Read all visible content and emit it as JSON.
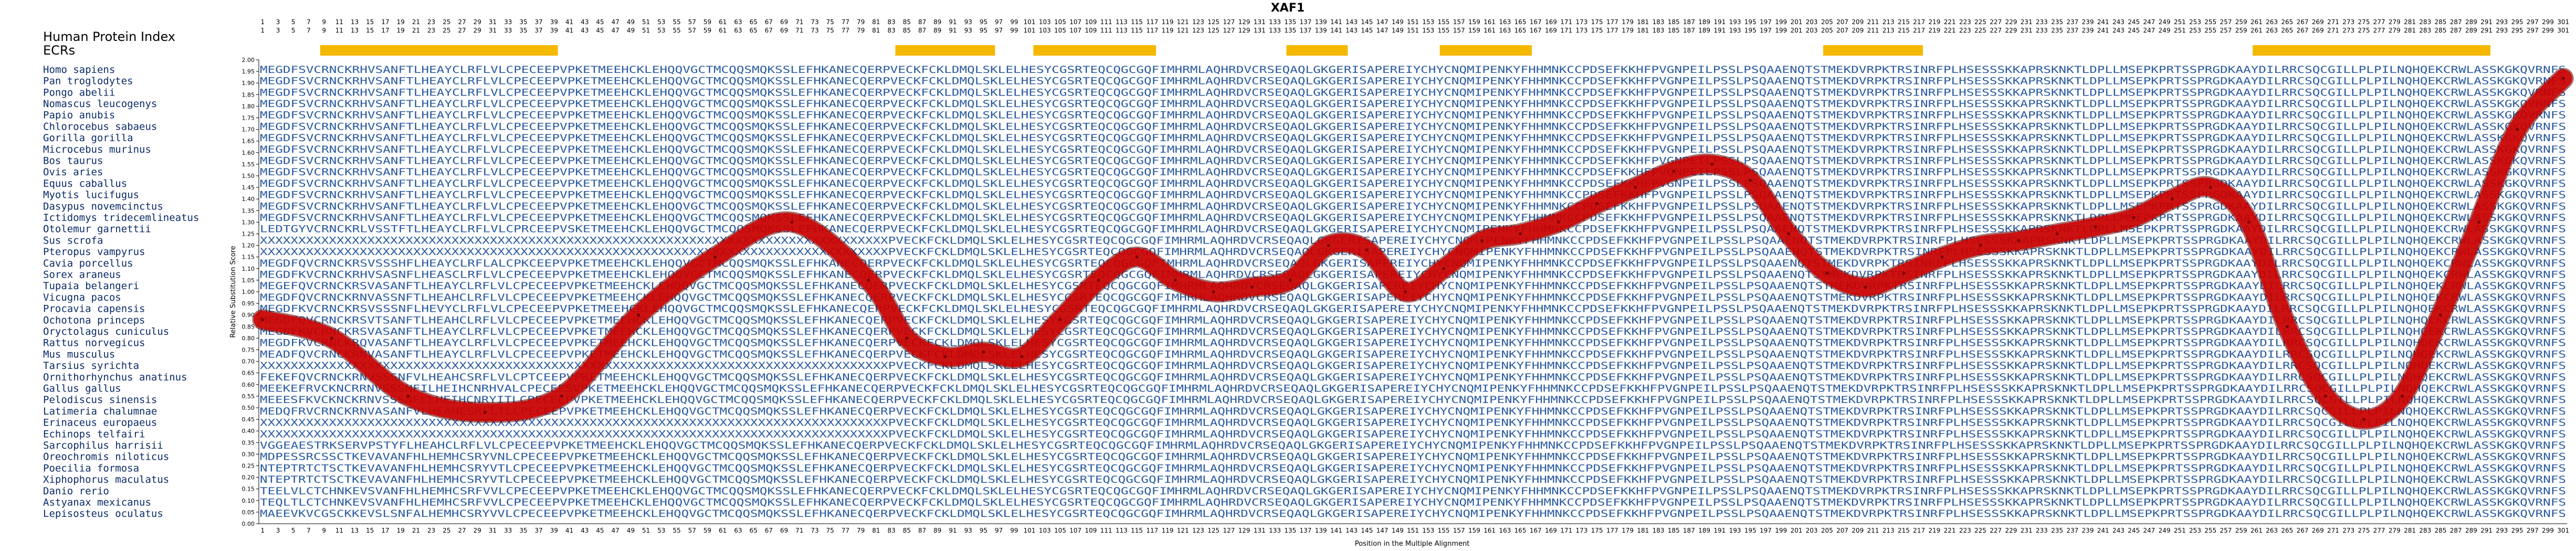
{
  "title": "XAF1",
  "header": {
    "index_label": "Human Protein Index",
    "ecr_label": "ECRs"
  },
  "xlabel": "Position in the Multiple Alignment",
  "ylabel": "Relative Substitution Score",
  "colors": {
    "ecr": "#f5b800",
    "curve": "#d40000",
    "sequence_text": "#2a5aa0",
    "species_text": "#0a2a66"
  },
  "species": [
    "Homo sapiens",
    "Pan troglodytes",
    "Pongo abelii",
    "Nomascus leucogenys",
    "Papio anubis",
    "Chlorocebus sabaeus",
    "Gorilla gorilla",
    "Microcebus murinus",
    "Bos taurus",
    "Ovis aries",
    "Equus caballus",
    "Myotis lucifugus",
    "Dasypus novemcinctus",
    "Ictidomys tridecemlineatus",
    "Otolemur garnettii",
    "Sus scrofa",
    "Pteropus vampyrus",
    "Cavia porcellus",
    "Sorex araneus",
    "Tupaia belangeri",
    "Vicugna pacos",
    "Procavia capensis",
    "Ochotona princeps",
    "Oryctolagus cuniculus",
    "Rattus norvegicus",
    "Mus musculus",
    "Tarsius syrichta",
    "Ornithorhynchus anatinus",
    "Gallus gallus",
    "Pelodiscus sinensis",
    "Latimeria chalumnae",
    "Erinaceus europaeus",
    "Echinops telfairi",
    "Sarcophilus harrisii",
    "Oreochromis niloticus",
    "Poecilia formosa",
    "Xiphophorus maculatus",
    "Danio rerio",
    "Astyanax mexicanus",
    "Lepisosteus oculatus"
  ],
  "sequences": [
    "MEGDFSVCRNCKRHVSANFTLHEAYCLRFLVLCPECEEPVPKETMEEHCKLEHQQVGCTMCQQSMQKSSLEFHKANECQERPVECKFCKLDMQLSKLELHESYCGSRTEQCQGCGQFIMHRMLAQHRDVCRSEQAQLGKGERISAPEREIYCHYCNQMIPENKYFHHMNKCCPDSEFKKHFPVGNPEILPSSLPSQAAENQTSTMEKDVRPKTRSINRFPLHSESSSKKAPRSKNKTLDPLLMSEPKPRTSSPRGDKAAYDILRRCSQCGILLPLPILNQHQEKCRWLASSKGKQVRNFS",
    "MEGDFSVCRNCKRHVSANFTLHEAYCLRFLVLCPECEEPVPKETMEEHCKLEHQQVGCTMCQQSMQKSSLEFHKANECQERPVECKFCKLDMQLSKLELHESYCGSRTEQCQGCGQFIMHRMLAQHRDVCRSEQAQLGKGERISAPEREIYCHYCNQMIPENKYFHHMNKCCPDSEFKKHFPVGNPEILPSSLPSQAAENQTSTMEKDVRPKTRSINRFPLHSESSSKKAPRSKNKTLDPLLMSEPKPRTSSPRGDKAAYDILRRCSQCGILLPLPILNQHQEKCRWLASSKGKQVRNFS",
    "MEGDFSVCRNCKRHVSANFTLHEAYCLRFLVLCPECEEPVPKETMEEHCKLEHQQVGCTMCQQSMQKSSLEFHKANECQERPVECKFCKLDMQLSKLELHESYCGSRTEQCQGCGQFIMHRMLAQHRDVCRSEQAQLGKGERISAPEREIYCHYCNQMIPENKYFHHMNKCCPDSEFKKHFPVGNPEILPSSLPSQAAENQTSTMEKDVRPKTRSINRFPLHSESSSKKAPRSKNKTLDPLLMSEPKPRTSSPRGDKAAYDILRRCSQCGILLPLPILNQHQEKCRWLASSKGKQVRNFS",
    "MEGDFSVCRNCKRHVSANFTLHEAYCLRFLVLCPECEEPVPKETMEEHCKLEHQQVGCTMCQQSMQKSSLEFHKANECQERPVECKFCKLDMQLSKLELHESYCGSRTEQCQGCGQFIMHRMLAQHRDVCRSEQAQLGKGERISAPEREIYCHYCNQMIPENKYFHHMNKCCPDSEFKKHFPVGNPEILPSSLPSQAAENQTSTMEKDVRPKTRSINRFPLHSESSSKKAPRSKNKTLDPLLMSEPKPRTSSPRGDKAAYDILRRCSQCGILLPLPILNQHQEKCRWLASSKGKQVRNFS",
    "MEGDFSVCRNCKRHVSANFTLHEAYCLRFLVLCPECEEPVPKETMEEHCKLEHQQVGCTMCQQSMQKSSLEFHKANECQERPVECKFCKLDMQLSKLELHESYCGSRTEQCQGCGQFIMHRMLAQHRDVCRSEQAQLGKGERISAPEREIYCHYCNQMIPENKYFHHMNKCCPDSEFKKHFPVGNPEILPSSLPSQAAENQTSTMEKDVRPKTRSINRFPLHSESSSKKAPRSKNKTLDPLLMSEPKPRTSSPRGDKAAYDILRRCSQCGILLPLPILNQHQEKCRWLASSKGKQVRNFS",
    "MEGDFSVCRNCKRHVSANFTLHEAYCLRFLVLCPECEEPVPKETMEEHCKLEHQQVGCTMCQQSMQKSSLEFHKANECQERPVECKFCKLDMQLSKLELHESYCGSRTEQCQGCGQFIMHRMLAQHRDVCRSEQAQLGKGERISAPEREIYCHYCNQMIPENKYFHHMNKCCPDSEFKKHFPVGNPEILPSSLPSQAAENQTSTMEKDVRPKTRSINRFPLHSESSSKKAPRSKNKTLDPLLMSEPKPRTSSPRGDKAAYDILRRCSQCGILLPLPILNQHQEKCRWLASSKGKQVRNFS",
    "MEGDFSVCRNCKRHVSANFTLHEAYCLRFLVLCPECEEPVPKETMEEHCKLEHQQVGCTMCQQSMQKSSLEFHKANECQERPVECKFCKLDMQLSKLELHESYCGSRTEQCQGCGQFIMHRMLAQHRDVCRSEQAQLGKGERISAPEREIYCHYCNQMIPENKYFHHMNKCCPDSEFKKHFPVGNPEILPSSLPSQAAENQTSTMEKDVRPKTRSINRFPLHSESSSKKAPRSKNKTLDPLLMSEPKPRTSSPRGDKAAYDILRRCSQCGILLPLPILNQHQEKCRWLASSKGKQVRNFS",
    "MEGDFSVCRNCKRHVSANFTLHEAYCLRFLVLCPECEEPVPKETMEEHCKLEHQQVGCTMCQQSMQKSSLEFHKANECQERPVECKFCKLDMQLSKLELHESYCGSRTEQCQGCGQFIMHRMLAQHRDVCRSEQAQLGKGERISAPEREIYCHYCNQMIPENKYFHHMNKCCPDSEFKKHFPVGNPEILPSSLPSQAAENQTSTMEKDVRPKTRSINRFPLHSESSSKKAPRSKNKTLDPLLMSEPKPRTSSPRGDKAAYDILRRCSQCGILLPLPILNQHQEKCRWLASSKGKQVRNFS",
    "MEGDFSVCRNCKRHVSANFTLHEAYCLRFLVLCPECEEPVPKETMEEHCKLEHQQVGCTMCQQSMQKSSLEFHKANECQERPVECKFCKLDMQLSKLELHESYCGSRTEQCQGCGQFIMHRMLAQHRDVCRSEQAQLGKGERISAPEREIYCHYCNQMIPENKYFHHMNKCCPDSEFKKHFPVGNPEILPSSLPSQAAENQTSTMEKDVRPKTRSINRFPLHSESSSKKAPRSKNKTLDPLLMSEPKPRTSSPRGDKAAYDILRRCSQCGILLPLPILNQHQEKCRWLASSKGKQVRNFS",
    "MEGDFSVCRNCKRHVSANFTLHEAYCLRFLVLCPECEEPVPKETMEEHCKLEHQQVGCTMCQQSMQKSSLEFHKANECQERPVECKFCKLDMQLSKLELHESYCGSRTEQCQGCGQFIMHRMLAQHRDVCRSEQAQLGKGERISAPEREIYCHYCNQMIPENKYFHHMNKCCPDSEFKKHFPVGNPEILPSSLPSQAAENQTSTMEKDVRPKTRSINRFPLHSESSSKKAPRSKNKTLDPLLMSEPKPRTSSPRGDKAAYDILRRCSQCGILLPLPILNQHQEKCRWLASSKGKQVRNFS",
    "MEGDFSVCRNCKRHVSANFTLHEAYCLRFLVLCPECEEPVPKETMEEHCKLEHQQVGCTMCQQSMQKSSLEFHKANECQERPVECKFCKLDMQLSKLELHESYCGSRTEQCQGCGQFIMHRMLAQHRDVCRSEQAQLGKGERISAPEREIYCHYCNQMIPENKYFHHMNKCCPDSEFKKHFPVGNPEILPSSLPSQAAENQTSTMEKDVRPKTRSINRFPLHSESSSKKAPRSKNKTLDPLLMSEPKPRTSSPRGDKAAYDILRRCSQCGILLPLPILNQHQEKCRWLASSKGKQVRNFS",
    "MEGDFSVCRNCKRHVSANFTLHEAYCLRFLVLCPECEEPVPKETMEEHCKLEHQQVGCTMCQQSMQKSSLEFHKANECQERPVECKFCKLDMQLSKLELHESYCGSRTEQCQGCGQFIMHRMLAQHRDVCRSEQAQLGKGERISAPEREIYCHYCNQMIPENKYFHHMNKCCPDSEFKKHFPVGNPEILPSSLPSQAAENQTSTMEKDVRPKTRSINRFPLHSESSSKKAPRSKNKTLDPLLMSEPKPRTSSPRGDKAAYDILRRCSQCGILLPLPILNQHQEKCRWLASSKGKQVRNFS",
    "MEGDFSVCRNCKRHVSANFTLHEAYCLRFLVLCPECEEPVPKETMEEHCKLEHQQVGCTMCQQSMQKSSLEFHKANECQERPVECKFCKLDMQLSKLELHESYCGSRTEQCQGCGQFIMHRMLAQHRDVCRSEQAQLGKGERISAPEREIYCHYCNQMIPENKYFHHMNKCCPDSEFKKHFPVGNPEILPSSLPSQAAENQTSTMEKDVRPKTRSINRFPLHSESSSKKAPRSKNKTLDPLLMSEPKPRTSSPRGDKAAYDILRRCSQCGILLPLPILNQHQEKCRWLASSKGKQVRNFS",
    "MEGDFSVCRNCKRHVSANFTLHEAYCLRFLVLCPECEEPVPKETMEEHCKLEHQQVGCTMCQQSMQKSSLEFHKANECQERPVECKFCKLDMQLSKLELHESYCGSRTEQCQGCGQFIMHRMLAQHRDVCRSEQAQLGKGERISAPEREIYCHYCNQMIPENKYFHHMNKCCPDSEFKKHFPVGNPEILPSSLPSQAAENQTSTMEKDVRPKTRSINRFPLHSESSSKKAPRSKNKTLDPLLMSEPKPRTSSPRGDKAAYDILRRCSQCGILLPLPILNQHQEKCRWLASSKGKQVRNFS",
    "LEDTGYVCRNCKRLVSSTFTLHEAYCLRFLVLCPRCEEPVSKETMEEHCKLEHQQVGCTMCQQSMQKSSLEFHKANECQERPVECKFCKLDMQLSKLELHESYCGSRTEQCQGCGQFIMHRMLAQHRDVCRSEQAQLGKGERISAPEREIYCHYCNQMIPENKYFHHMNKCCPDSEFKKHFPVGNPEILPSSLPSQAAENQTSTMEKDVRPKTRSINRFPLHSESSSKKAPRSKNKTLDPLLMSEPKPRTSSPRGDKAAYDILRRCSQCGILLPLPILNQHQEKCRWLASSKGKQVRNFS",
    "XXXXXXXXXXXXXXXXXXXXXXXXXXXXXXXXXXXXXXXXXXXXXXXXXXXXXXXXXXXXXXXXXXXXXXXXXXXXXXXXXXPVECKFCKLDMQLSKLELHESYCGSRTEQCQGCGQFIMHRMLAQHRDVCRSEQAQLGKGERISAPEREIYCHYCNQMIPENKYFHHMNKCCPDSEFKKHFPVGNPEILPSSLPSQAAENQTSTMEKDVRPKTRSINRFPLHSESSSKKAPRSKNKTLDPLLMSEPKPRTSSPRGDKAAYDILRRCSQCGILLPLPILNQHQEKCRWLASSKGKQVRNFS",
    "XXXXXXXXXXXXXXXXXXXXXXXXXXXXXXXXXXXXXXXXXXXXXXXXXXXXXXXXXXXXXXXXXXXXXXXXXXXXXXXXXXPVECKFCKLDMQLSKLELHESYCGSRTEQCQGCGQFIMHRMLAQHRDVCRSEQAQLGKGERISAPEREIYCHYCNQMIPENKYFHHMNKCCPDSEFKKHFPVGNPEILPSSLPSQAAENQTSTMEKDVRPKTRSINRFPLHSESSSKKAPRSKNKTLDPLLMSEPKPRTSSPRGDKAAYDILRRCSQCGILLPLPILNQHQEKCRWLASSKGKQVRNFS",
    "MEGDFQVCRNCKRSVSSSHFLHEAYCLRFLALCPKCEEPVPKETMEEHCKLEHQQVGCTMCQQSMQKSSLEFHKANECQERPVECKFCKLDMQLSKLELHESYCGSRTEQCQGCGQFIMHRMLAQHRDVCRSEQAQLGKGERISAPEREIYCHYCNQMIPENKYFHHMNKCCPDSEFKKHFPVGNPEILPSSLPSQAAENQTSTMEKDVRPKTRSINRFPLHSESSSKKAPRSKNKTLDPLLMSEPKPRTSSPRGDKAAYDILRRCSQCGILLPLPILNQHQEKCRWLASSKGKQVRNFS",
    "MEGDFKVCRNCKRHVSASNFLHEASCLRFLVLCPECEEPVPKETMEEHCKLEHQQVGCTMCQQSMQKSSLEFHKANECQERPVECKFCKLDMQLSKLELHESYCGSRTEQCQGCGQFIMHRMLAQHRDVCRSEQAQLGKGERISAPEREIYCHYCNQMIPENKYFHHMNKCCPDSEFKKHFPVGNPEILPSSLPSQAAENQTSTMEKDVRPKTRSINRFPLHSESSSKKAPRSKNKTLDPLLMSEPKPRTSSPRGDKAAYDILRRCSQCGILLPLPILNQHQEKCRWLASSKGKQVRNFS",
    "MEGEFQVCRNCKRSVASANFTLHEAYCLRFLVLCPECEEPVPKETMEEHCKLEHQQVGCTMCQQSMQKSSLEFHKANECQERPVECKFCKLDMQLSKLELHESYCGSRTEQCQGCGQFIMHRMLAQHRDVCRSEQAQLGKGERISAPEREIYCHYCNQMIPENKYFHHMNKCCPDSEFKKHFPVGNPEILPSSLPSQAAENQTSTMEKDVRPKTRSINRFPLHSESSSKKAPRSKNKTLDPLLMSEPKPRTSSPRGDKAAYDILRRCSQCGILLPLPILNQHQEKCRWLASSKGKQVRNFS",
    "MEGDFQVCRNCKRNVASSNFTLHEAHCLRFLVLCPECEEPVPKETMEEHCKLEHQQVGCTMCQQSMQKSSLEFHKANECQERPVECKFCKLDMQLSKLELHESYCGSRTEQCQGCGQFIMHRMLAQHRDVCRSEQAQLGKGERISAPEREIYCHYCNQMIPENKYFHHMNKCCPDSEFKKHFPVGNPEILPSSLPSQAAENQTSTMEKDVRPKTRSINRFPLHSESSSKKAPRSKNKTLDPLLMSEPKPRTSSPRGDKAAYDILRRCSQCGILLPLPILNQHQEKCRWLASSKGKQVRNFS",
    "MEGDFKVCRNCKRSVSSSNFLHEVYCLRFLVLCPECEEPVPKETMEEHCKLEHQQVGCTMCQQSMQKSSLEFHKANECQERPVECKFCKLDMQLSKLELHESYCGSRTEQCQGCGQFIMHRMLAQHRDVCRSEQAQLGKGERISAPEREIYCHYCNQMIPENKYFHHMNKCCPDSEFKKHFPVGNPEILPSSLPSQAAENQTSTMEKDVRPKTRSINRFPLHSESSSKKAPRSKNKTLDPLLMSEPKPRTSSPRGDKAAYDILRRCSQCGILLPLPILNQHQEKCRWLASSKGKQVRNFS",
    "MEGDFQVCRNCKRSVTSANFTLHEAHCLRFLVLCPECEEPVPKETMEEHCKLEHQQVGCTMCQQSMQKSSLEFHKANECQERPVECKFCKLDMQLSKLELHESYCGSRTEQCQGCGQFIMHRMLAQHRDVCRSEQAQLGKGERISAPEREIYCHYCNQMIPENKYFHHMNKCCPDSEFKKHFPVGNPEILPSSLPSQAAENQTSTMEKDVRPKTRSINRFPLHSESSSKKAPRSKNKTLDPLLMSEPKPRTSSPRGDKAAYDILRRCSQCGILLPLPILNQHQEKCRWLASSKGKQVRNFS",
    "MEGDFKVCRNCKRSVASANFTLHEAYCLRFLVLCPECEEPVPKETMEEHCKLEHQQVGCTMCQQSMQKSSLEFHKANECQERPVECKFCKLDMQLSKLELHESYCGSRTEQCQGCGQFIMHRMLAQHRDVCRSEQAQLGKGERISAPEREIYCHYCNQMIPENKYFHHMNKCCPDSEFKKHFPVGNPEILPSSLPSQAAENQTSTMEKDVRPKTRSINRFPLHSESSSKKAPRSKNKTLDPLLMSEPKPRTSSPRGDKAAYDILRRCSQCGILLPLPILNQHQEKCRWLASSKGKQVRNFS",
    "MEGDFKVCRNCKRQVASANFTLHEAYCLRFLVLCPECEEPVPKETMEEHCKLEHQQVGCTMCQQSMQKSSLEFHKANECQERPVECKFCKLDMQLSKLELHESYCGSRTEQCQGCGQFIMHRMLAQHRDVCRSEQAQLGKGERISAPEREIYCHYCNQMIPENKYFHHMNKCCPDSEFKKHFPVGNPEILPSSLPSQAAENQTSTMEKDVRPKTRSINRFPLHSESSSKKAPRSKNKTLDPLLMSEPKPRTSSPRGDKAAYDILRRCSQCGILLPLPILNQHQEKCRWLASSKGKQVRNFS",
    "MEADFQVCRNCKRNVASANFTLHEAYCLRFLVLCPECEEPVPKETMEEHCKLEHQQVGCTMCQQSMQKSSLEFHKANECQERPVECKFCKLDMQLSKLELHESYCGSRTEQCQGCGQFIMHRMLAQHRDVCRSEQAQLGKGERISAPEREIYCHYCNQMIPENKYFHHMNKCCPDSEFKKHFPVGNPEILPSSLPSQAAENQTSTMEKDVRPKTRSINRFPLHSESSSKKAPRSKNKTLDPLLMSEPKPRTSSPRGDKAAYDILRRCSQCGILLPLPILNQHQEKCRWLASSKGKQVRNFS",
    "XXXXXXXXXXXXXXXXXXXXXXXXXXXXXXXXXXXXXXXXXXXXXXXXXXXXXXXXXXXXXXXXXXXXXXXXXXXXXXXXXXPVECKFCKLDMQLSKLELHESYCGSRTEQCQGCGQFIMHRMLAQHRDVCRSEQAQLGKGERISAPEREIYCHYCNQMIPENKYFHHMNKCCPDSEFKKHFPVGNPEILPSSLPSQAAENQTSTMEKDVRPKTRSINRFPLHSESSSKKAPRSKNKTLDPLLMSEPKPRTSSPRGDKAAYDILRRCSQCGILLPLPILNQHQEKCRWLASSKGKQVRNFS",
    "FEKEFQVCRNCKRNVSSSNFVLHEAHCSRFLVLCPTCEEPVPKETMEEHCKLEHQQVGCTMCQQSMQKSSLEFHKANECQERPVECKFCKLDMQLSKLELHESYCGSRTEQCQGCGQFIMHRMLAQHRDVCRSEQAQLGKGERISAPEREIYCHYCNQMIPENKYFHHMNKCCPDSEFKKHFPVGNPEILPSSLPSQAAENQTSTMEKDVRPKTRSINRFPLHSESSSKKAPRSKNKTLDPLLMSEPKPRTSSPRGDKAAYDILRRCSQCGILLPLPILNQHQEKCRWLASSKGKQVRNFS",
    "MEEKEFRVCKNCRRNVSSSNFILHEIHCNRHVALCPECEESVPKETMEEHCKLEHQQVGCTMCQQSMQKSSLEFHKANECQERPVECKFCKLDMQLSKLELHESYCGSRTEQCQGCGQFIMHRMLAQHRDVCRSEQAQLGKGERISAPEREIYCHYCNQMIPENKYFHHMNKCCPDSEFKKHFPVGNPEILPSSLPSQAAENQTSTMEKDVRPKTRSINRFPLHSESSSKKAPRSKNKTLDPLLMSEPKPRTSSPRGDKAAYDILRRCSQCGILLPLPILNQHQEKCRWLASSKGKQVRNFS",
    "MEEESFKVCKNCKRNVSSSNFLLHEIHCNRYITLCPECEEPVPKETMEEHCKLEHQQVGCTMCQQSMQKSSLEFHKANECQERPVECKFCKLDMQLSKLELHESYCGSRTEQCQGCGQFIMHRMLAQHRDVCRSEQAQLGKGERISAPEREIYCHYCNQMIPENKYFHHMNKCCPDSEFKKHFPVGNPEILPSSLPSQAAENQTSTMEKDVRPKTRSINRFPLHSESSSKKAPRSKNKTLDPLLMSEPKPRTSSPRGDKAAYDILRRCSQCGILLPLPILNQHQEKCRWLASSKGKQVRNFS",
    "MEDQFRVCRNCKRNVASANFVLHEAHCSRFLTLCPECEEPVPKETMEEHCKLEHQQVGCTMCQQSMQKSSLEFHKANECQERPVECKFCKLDMQLSKLELHESYCGSRTEQCQGCGQFIMHRMLAQHRDVCRSEQAQLGKGERISAPEREIYCHYCNQMIPENKYFHHMNKCCPDSEFKKHFPVGNPEILPSSLPSQAAENQTSTMEKDVRPKTRSINRFPLHSESSSKKAPRSKNKTLDPLLMSEPKPRTSSPRGDKAAYDILRRCSQCGILLPLPILNQHQEKCRWLASSKGKQVRNFS",
    "XXXXXXXXXXXXXXXXXXXXXXXXXXXXXXXXXXXXXXXXXXXXXXXXXXXXXXXXXXXXXXXXXXXXXXXXXXXXXXXXXXPVECKFCKLDMQLSKLELHESYCGSRTEQCQGCGQFIMHRMLAQHRDVCRSEQAQLGKGERISAPEREIYCHYCNQMIPENKYFHHMNKCCPDSEFKKHFPVGNPEILPSSLPSQAAENQTSTMEKDVRPKTRSINRFPLHSESSSKKAPRSKNKTLDPLLMSEPKPRTSSPRGDKAAYDILRRCSQCGILLPLPILNQHQEKCRWLASSKGKQVRNFS",
    "XXXXXXXXXXXXXXXXXXXXXXXXXXXXXXXXXXXXXXXXXXXXXXXXXXXXXXXXXXXXXXXXXXXXXXXXXXXXXXXXXXPVECKFCKLDMQLSKLELHESYCGSRTEQCQGCGQFIMHRMLAQHRDVCRSEQAQLGKGERISAPEREIYCHYCNQMIPENKYFHHMNKCCPDSEFKKHFPVGNPEILPSSLPSQAAENQTSTMEKDVRPKTRSINRFPLHSESSSKKAPRSKNKTLDPLLMSEPKPRTSSPRGDKAAYDILRRCSQCGILLPLPILNQHQEKCRWLASSKGKQVRNFS",
    "VGGEAESTRKSERVPSTYFLHEAHCLRFLVLCPECEEPVPKETMEEHCKLEHQQVGCTMCQQSMQKSSLEFHKANECQERPVECKFCKLDMQLSKLELHESYCGSRTEQCQGCGQFIMHRMLAQHRDVCRSEQAQLGKGERISAPEREIYCHYCNQMIPENKYFHHMNKCCPDSEFKKHFPVGNPEILPSSLPSQAAENQTSTMEKDVRPKTRSINRFPLHSESSSKKAPRSKNKTLDPLLMSEPKPRTSSPRGDKAAYDILRRCSQCGILLPLPILNQHQEKCRWLASSKGKQVRNFS",
    "MDPESSRCSSCTKEVAVANFHLHEMHCSRYVNLCPECEEPVPKETMEEHCKLEHQQVGCTMCQQSMQKSSLEFHKANECQERPVECKFCKLDMQLSKLELHESYCGSRTEQCQGCGQFIMHRMLAQHRDVCRSEQAQLGKGERISAPEREIYCHYCNQMIPENKYFHHMNKCCPDSEFKKHFPVGNPEILPSSLPSQAAENQTSTMEKDVRPKTRSINRFPLHSESSSKKAPRSKNKTLDPLLMSEPKPRTSSPRGDKAAYDILRRCSQCGILLPLPILNQHQEKCRWLASSKGKQVRNFS",
    "NTEPTRTCTSCTKEVAVANFHLHEMHCSRYVTLCPECEEPVPKETMEEHCKLEHQQVGCTMCQQSMQKSSLEFHKANECQERPVECKFCKLDMQLSKLELHESYCGSRTEQCQGCGQFIMHRMLAQHRDVCRSEQAQLGKGERISAPEREIYCHYCNQMIPENKYFHHMNKCCPDSEFKKHFPVGNPEILPSSLPSQAAENQTSTMEKDVRPKTRSINRFPLHSESSSKKAPRSKNKTLDPLLMSEPKPRTSSPRGDKAAYDILRRCSQCGILLPLPILNQHQEKCRWLASSKGKQVRNFS",
    "NTEPTRTCTSCTKEVAVANFHLHEMHCSRYVTLCPECEEPVPKETMEEHCKLEHQQVGCTMCQQSMQKSSLEFHKANECQERPVECKFCKLDMQLSKLELHESYCGSRTEQCQGCGQFIMHRMLAQHRDVCRSEQAQLGKGERISAPEREIYCHYCNQMIPENKYFHHMNKCCPDSEFKKHFPVGNPEILPSSLPSQAAENQTSTMEKDVRPKTRSINRFPLHSESSSKKAPRSKNKTLDPLLMSEPKPRTSSPRGDKAAYDILRRCSQCGILLPLPILNQHQEKCRWLASSKGKQVRNFS",
    "TEELVLCTCHNKEVSVANFHLHEMHCSRFVVLCPECEEPVPKETMEEHCKLEHQQVGCTMCQQSMQKSSLEFHKANECQERPVECKFCKLDMQLSKLELHESYCGSRTEQCQGCGQFIMHRMLAQHRDVCRSEQAQLGKGERISAPEREIYCHYCNQMIPENKYFHHMNKCCPDSEFKKHFPVGNPEILPSSLPSQAAENQTSTMEKDVRPKTRSINRFPLHSESSSKKAPRSKNKTLDPLLMSEPKPRTSSPRGDKAAYDILRRCSQCGILLPLPILNQHQEKCRWLASSKGKQVRNFS",
    "TEQLTLCTCHNKEVSVANFHLHEMHCSRFVVLCPECEEPVPKETMEEHCKLEHQQVGCTMCQQSMQKSSLEFHKANECQERPVECKFCKLDMQLSKLELHESYCGSRTEQCQGCGQFIMHRMLAQHRDVCRSEQAQLGKGERISAPEREIYCHYCNQMIPENKYFHHMNKCCPDSEFKKHFPVGNPEILPSSLPSQAAENQTSTMEKDVRPKTRSINRFPLHSESSSKKAPRSKNKTLDPLLMSEPKPRTSSPRGDKAAYDILRRCSQCGILLPLPILNQHQEKCRWLASSKGKQVRNFS",
    "MAEEVKVCGSCKKEVSLSNFALHEMHCSRYVVLCPECEEPVPKETMEEHCKLEHQQVGCTMCQQSMQKSSLEFHKANECQERPVECKFCKLDMQLSKLELHESYCGSRTEQCQGCGQFIMHRMLAQHRDVCRSEQAQLGKGERISAPEREIYCHYCNQMIPENKYFHHMNKCCPDSEFKKHFPVGNPEILPSSLPSQAAENQTSTMEKDVRPKTRSINRFPLHSESSSKKAPRSKNKTLDPLLMSEPKPRTSSPRGDKAAYDILRRCSQCGILLPLPILNQHQEKCRWLASSKGKQVRNFS"
  ],
  "chart_data": {
    "type": "line",
    "title": "XAF1",
    "xlabel": "Position in the Multiple Alignment",
    "ylabel": "Relative Substitution Score",
    "xlim": [
      1,
      301
    ],
    "ylim": [
      0.0,
      2.0
    ],
    "yticks": [
      "0.00",
      "0.05",
      "0.10",
      "0.15",
      "0.20",
      "0.25",
      "0.30",
      "0.35",
      "0.40",
      "0.45",
      "0.50",
      "0.55",
      "0.60",
      "0.65",
      "0.70",
      "0.75",
      "0.80",
      "0.85",
      "0.90",
      "0.95",
      "1.00",
      "1.05",
      "1.10",
      "1.15",
      "1.20",
      "1.25",
      "1.30",
      "1.35",
      "1.40",
      "1.45",
      "1.50",
      "1.55",
      "1.60",
      "1.65",
      "1.70",
      "1.75",
      "1.80",
      "1.85",
      "1.90",
      "1.95",
      "2.00"
    ],
    "ecr_ranges": [
      [
        9,
        39
      ],
      [
        84,
        96
      ],
      [
        102,
        117
      ],
      [
        135,
        142
      ],
      [
        155,
        166
      ],
      [
        205,
        217
      ],
      [
        261,
        291
      ]
    ],
    "series": [
      {
        "x": [
          1,
          10,
          20,
          30,
          40,
          50,
          60,
          70,
          80,
          85,
          90,
          95,
          100,
          105,
          110,
          115,
          120,
          125,
          130,
          135,
          140,
          145,
          150,
          155,
          160,
          165,
          170,
          175,
          180,
          185,
          190,
          195,
          200,
          205,
          210,
          215,
          220,
          225,
          230,
          235,
          240,
          245,
          250,
          255,
          260,
          265,
          270,
          275,
          280,
          285,
          290,
          295,
          301
        ],
        "y": [
          0.88,
          0.8,
          0.55,
          0.48,
          0.55,
          0.9,
          1.15,
          1.3,
          1.05,
          0.8,
          0.72,
          0.74,
          0.72,
          0.88,
          1.05,
          1.15,
          1.05,
          1.0,
          1.02,
          1.05,
          1.2,
          1.18,
          1.0,
          1.1,
          1.22,
          1.25,
          1.3,
          1.38,
          1.45,
          1.52,
          1.55,
          1.48,
          1.25,
          1.08,
          1.02,
          1.08,
          1.15,
          1.2,
          1.22,
          1.25,
          1.28,
          1.32,
          1.4,
          1.45,
          1.3,
          0.85,
          0.55,
          0.45,
          0.55,
          0.9,
          1.3,
          1.7,
          1.92
        ]
      }
    ]
  }
}
